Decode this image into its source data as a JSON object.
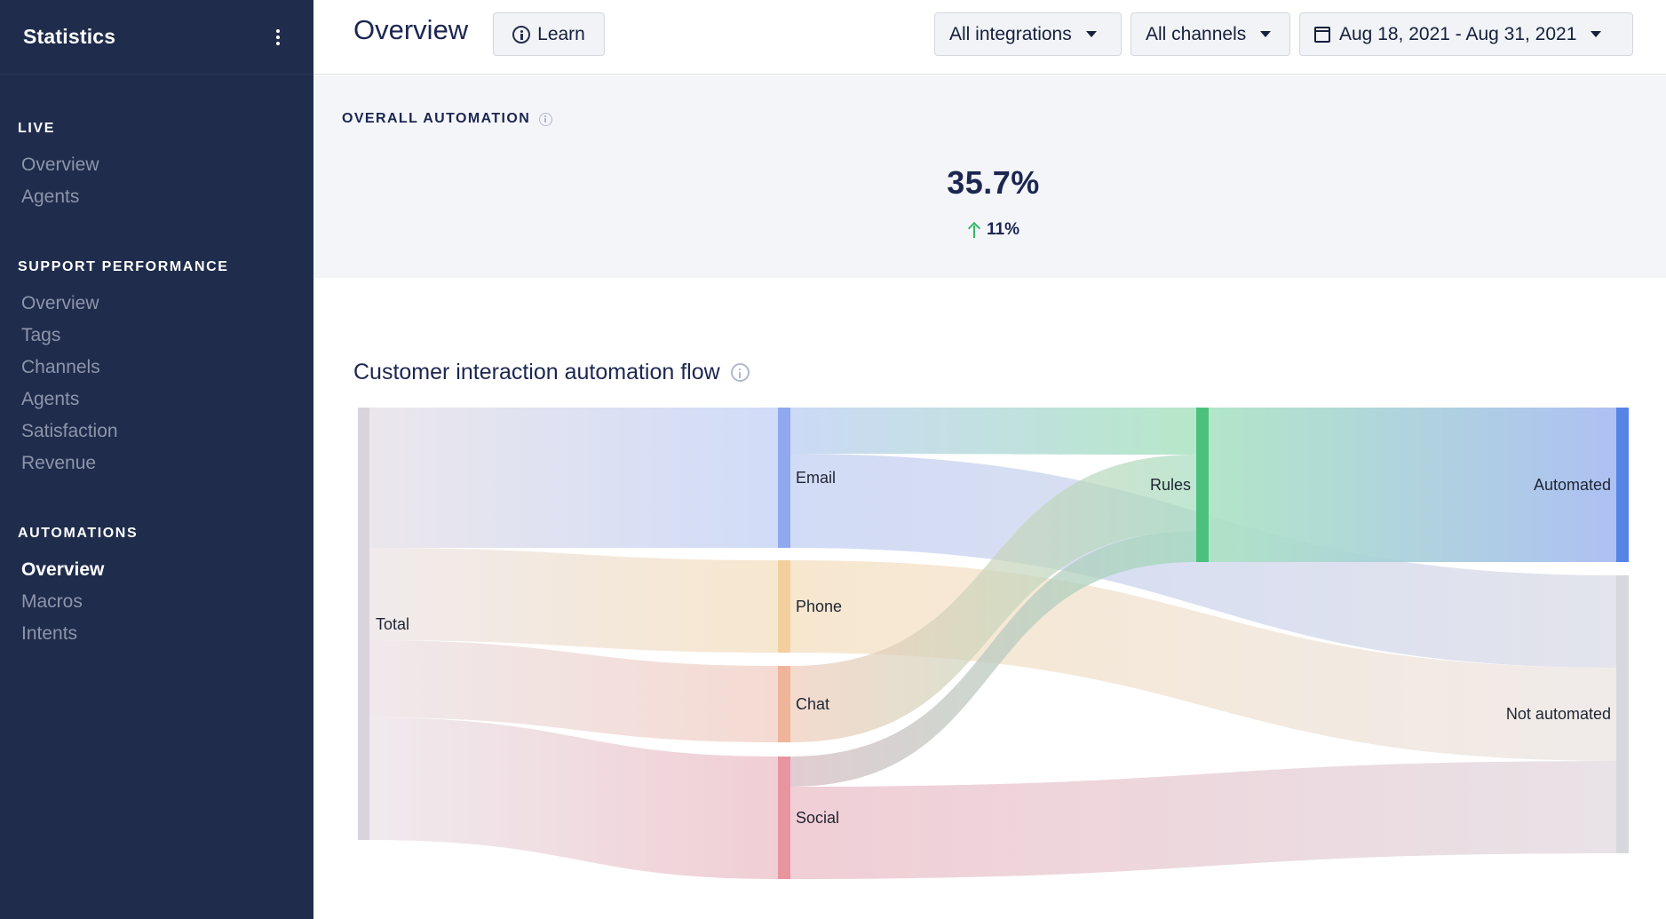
{
  "sidebar": {
    "title": "Statistics",
    "sections": [
      {
        "title": "LIVE",
        "items": [
          {
            "label": "Overview"
          },
          {
            "label": "Agents"
          }
        ]
      },
      {
        "title": "SUPPORT PERFORMANCE",
        "items": [
          {
            "label": "Overview"
          },
          {
            "label": "Tags"
          },
          {
            "label": "Channels"
          },
          {
            "label": "Agents"
          },
          {
            "label": "Satisfaction"
          },
          {
            "label": "Revenue"
          }
        ]
      },
      {
        "title": "AUTOMATIONS",
        "items": [
          {
            "label": "Overview"
          },
          {
            "label": "Macros"
          },
          {
            "label": "Intents"
          }
        ],
        "active_index": 0
      }
    ]
  },
  "header": {
    "title": "Overview",
    "learn_label": "Learn",
    "filters": {
      "integrations": "All integrations",
      "channels": "All channels",
      "date_range": "Aug 18, 2021 - Aug 31, 2021"
    }
  },
  "overall": {
    "title": "OVERALL AUTOMATION",
    "value": "35.7%",
    "delta": "11%",
    "delta_direction": "up",
    "delta_color": "#34b86a"
  },
  "flow": {
    "title": "Customer interaction automation flow",
    "nodes": [
      {
        "id": "total",
        "label": "Total",
        "color": "#d9d4dc"
      },
      {
        "id": "email",
        "label": "Email",
        "color": "#8fa8ee"
      },
      {
        "id": "phone",
        "label": "Phone",
        "color": "#f3cf9d"
      },
      {
        "id": "chat",
        "label": "Chat",
        "color": "#f0b49a"
      },
      {
        "id": "social",
        "label": "Social",
        "color": "#e8959f"
      },
      {
        "id": "rules",
        "label": "Rules",
        "color": "#4cc17e"
      },
      {
        "id": "automated",
        "label": "Automated",
        "color": "#5584e6"
      },
      {
        "id": "not_automated",
        "label": "Not automated",
        "color": "#d7d8dd"
      }
    ]
  },
  "colors": {
    "sidebar_bg": "#1f2c4c",
    "accent": "#1c2651"
  }
}
